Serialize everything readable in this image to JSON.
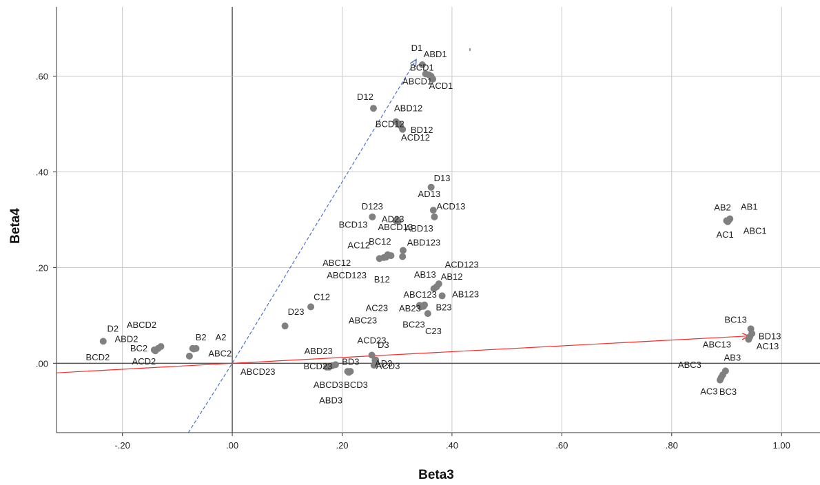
{
  "chart_data": {
    "type": "scatter",
    "title": "",
    "xlabel": "Beta3",
    "ylabel": "Beta4",
    "xlim": [
      -0.32,
      1.07
    ],
    "ylim": [
      -0.145,
      0.745
    ],
    "xticks": [
      -0.2,
      0.0,
      0.2,
      0.4,
      0.6,
      0.8,
      1.0
    ],
    "xtick_labels": [
      "-.20",
      ".00",
      ".20",
      ".40",
      ".60",
      ".80",
      "1.00"
    ],
    "yticks": [
      0.0,
      0.2,
      0.4,
      0.6
    ],
    "ytick_labels": [
      ".00",
      ".20",
      ".40",
      ".60"
    ],
    "grid": true,
    "colors": {
      "points": "#808080",
      "vector_red": "#ff2a2a",
      "vector_blue": "#4f72c9",
      "grid": "#c8c8c8",
      "zero_line": "#555555"
    },
    "lines": [
      {
        "style": "solid",
        "color": "#ff2a2a",
        "x": [
          -0.32,
          0.0,
          0.94
        ],
        "y": [
          -0.02,
          0.0,
          0.057
        ],
        "arrow": true
      },
      {
        "style": "dashed",
        "color": "#4f72c9",
        "x": [
          -0.08,
          0.0,
          0.335
        ],
        "y": [
          -0.145,
          0.0,
          0.635
        ],
        "arrow": true
      }
    ],
    "points": [
      {
        "label": "D1",
        "x": 0.346,
        "y": 0.624
      },
      {
        "label": "ABD1",
        "x": 0.352,
        "y": 0.605
      },
      {
        "label": "BCD1",
        "x": 0.358,
        "y": 0.603
      },
      {
        "label": "ABCD1",
        "x": 0.362,
        "y": 0.6
      },
      {
        "label": "ACD1",
        "x": 0.365,
        "y": 0.594
      },
      {
        "label": "D12",
        "x": 0.257,
        "y": 0.533
      },
      {
        "label": "ABD12",
        "x": 0.298,
        "y": 0.505
      },
      {
        "label": "BCD12",
        "x": 0.302,
        "y": 0.501
      },
      {
        "label": "BD12",
        "x": 0.31,
        "y": 0.489
      },
      {
        "label": "ACD12",
        "x": 0.306,
        "y": 0.497
      },
      {
        "label": "D13",
        "x": 0.362,
        "y": 0.368
      },
      {
        "label": "AD13",
        "x": 0.366,
        "y": 0.32
      },
      {
        "label": "ACD13",
        "x": 0.368,
        "y": 0.306
      },
      {
        "label": "D123",
        "x": 0.255,
        "y": 0.306
      },
      {
        "label": "AD23",
        "x": 0.3,
        "y": 0.299
      },
      {
        "label": "BCD13",
        "x": 0.298,
        "y": 0.298
      },
      {
        "label": "ABCD13",
        "x": 0.302,
        "y": 0.297
      },
      {
        "label": "ABD13",
        "x": 0.3,
        "y": 0.3
      },
      {
        "label": "AC12",
        "x": 0.283,
        "y": 0.227
      },
      {
        "label": "BC12",
        "x": 0.289,
        "y": 0.225
      },
      {
        "label": "ABD123",
        "x": 0.311,
        "y": 0.236
      },
      {
        "label": "ABC12",
        "x": 0.268,
        "y": 0.219
      },
      {
        "label": "ABCD123",
        "x": 0.276,
        "y": 0.221
      },
      {
        "label": "B12",
        "x": 0.28,
        "y": 0.222
      },
      {
        "label": "ACD123",
        "x": 0.31,
        "y": 0.223
      },
      {
        "label": "AB13",
        "x": 0.376,
        "y": 0.166
      },
      {
        "label": "AB12",
        "x": 0.372,
        "y": 0.16
      },
      {
        "label": "ABC123",
        "x": 0.367,
        "y": 0.156
      },
      {
        "label": "AB123",
        "x": 0.382,
        "y": 0.141
      },
      {
        "label": "AC23",
        "x": 0.341,
        "y": 0.121
      },
      {
        "label": "AB23",
        "x": 0.346,
        "y": 0.12
      },
      {
        "label": "B23",
        "x": 0.35,
        "y": 0.122
      },
      {
        "label": "ABC23",
        "x": 0.343,
        "y": 0.118
      },
      {
        "label": "BC23",
        "x": 0.348,
        "y": 0.119
      },
      {
        "label": "C23",
        "x": 0.356,
        "y": 0.104
      },
      {
        "label": "C12",
        "x": 0.143,
        "y": 0.118
      },
      {
        "label": "D23",
        "x": 0.096,
        "y": 0.078
      },
      {
        "label": "D2",
        "x": -0.235,
        "y": 0.046
      },
      {
        "label": "ABCD2",
        "x": -0.13,
        "y": 0.035
      },
      {
        "label": "ABD2",
        "x": -0.14,
        "y": 0.026
      },
      {
        "label": "B2",
        "x": -0.072,
        "y": 0.031
      },
      {
        "label": "A2",
        "x": -0.066,
        "y": 0.031
      },
      {
        "label": "BC2",
        "x": -0.135,
        "y": 0.031
      },
      {
        "label": "ACD2",
        "x": -0.078,
        "y": 0.015
      },
      {
        "label": "ABC2",
        "x": -0.07,
        "y": 0.03
      },
      {
        "label": "BCD2",
        "x": -0.142,
        "y": 0.028
      },
      {
        "label": "ABD23",
        "x": 0.182,
        "y": -0.005
      },
      {
        "label": "ACD23",
        "x": 0.254,
        "y": 0.017
      },
      {
        "label": "D3",
        "x": 0.26,
        "y": 0.006
      },
      {
        "label": "BCD23",
        "x": 0.176,
        "y": -0.008
      },
      {
        "label": "BD3",
        "x": 0.188,
        "y": -0.003
      },
      {
        "label": "ACD3",
        "x": 0.261,
        "y": 0.007
      },
      {
        "label": "ABCD23",
        "x": 0.172,
        "y": -0.008
      },
      {
        "label": "ABCD3",
        "x": 0.21,
        "y": -0.017
      },
      {
        "label": "BCD3",
        "x": 0.215,
        "y": -0.017
      },
      {
        "label": "AD3",
        "x": 0.258,
        "y": -0.004
      },
      {
        "label": "ABD3",
        "x": 0.212,
        "y": -0.019
      },
      {
        "label": "AB2",
        "x": 0.9,
        "y": 0.298
      },
      {
        "label": "AB1",
        "x": 0.906,
        "y": 0.302
      },
      {
        "label": "AC1",
        "x": 0.902,
        "y": 0.296
      },
      {
        "label": "ABC1",
        "x": 0.904,
        "y": 0.299
      },
      {
        "label": "BC13",
        "x": 0.944,
        "y": 0.072
      },
      {
        "label": "BD13",
        "x": 0.946,
        "y": 0.062
      },
      {
        "label": "ABC13",
        "x": 0.94,
        "y": 0.05
      },
      {
        "label": "AC13",
        "x": 0.942,
        "y": 0.055
      },
      {
        "label": "ABC3",
        "x": 0.893,
        "y": -0.024
      },
      {
        "label": "AB3",
        "x": 0.898,
        "y": -0.016
      },
      {
        "label": "AC3",
        "x": 0.888,
        "y": -0.035
      },
      {
        "label": "BC3",
        "x": 0.89,
        "y": -0.03
      }
    ],
    "extra_labels": [
      "ABD1",
      "BCD1",
      "ABCD1",
      "ACD1",
      "ABD12",
      "BCD12",
      "BD12",
      "ACD12"
    ]
  }
}
